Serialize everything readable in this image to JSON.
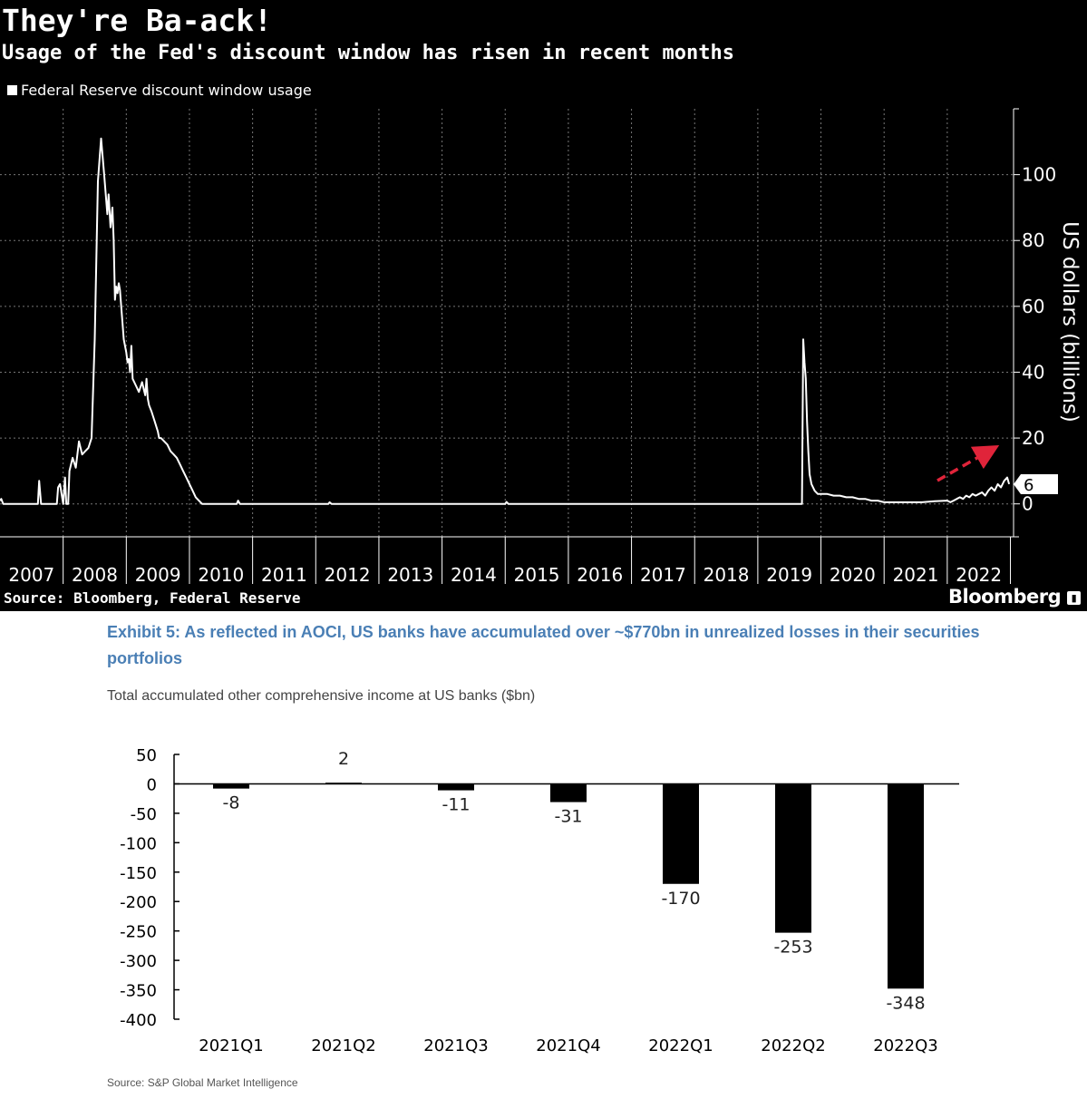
{
  "chart_data": [
    {
      "type": "line",
      "title": "They're Ba-ack!",
      "subtitle": "Usage of the Fed's discount window has risen in recent months",
      "legend": "Federal Reserve discount window usage",
      "ylabel": "US dollars (billions)",
      "ylim": [
        -10,
        120
      ],
      "xlim": [
        2007,
        2023.05
      ],
      "y_ticks": [
        "100",
        "80",
        "60",
        "40",
        "20",
        "0"
      ],
      "y_tick_values": [
        100,
        80,
        60,
        40,
        20,
        0
      ],
      "x_ticks": [
        "2007",
        "2008",
        "2009",
        "2010",
        "2011",
        "2012",
        "2013",
        "2014",
        "2015",
        "2016",
        "2017",
        "2018",
        "2019",
        "2020",
        "2021",
        "2022"
      ],
      "last_value_label": "6",
      "source": "Source: Bloomberg, Federal Reserve",
      "brand": "Bloomberg",
      "annotation": "red dashed arrow indicating rising usage in 2022",
      "series": [
        {
          "name": "Federal Reserve discount window usage",
          "x": [
            2007.0,
            2007.02,
            2007.05,
            2007.1,
            2007.6,
            2007.62,
            2007.65,
            2007.7,
            2007.9,
            2007.92,
            2007.95,
            2008.0,
            2008.03,
            2008.05,
            2008.08,
            2008.1,
            2008.15,
            2008.2,
            2008.25,
            2008.3,
            2008.35,
            2008.4,
            2008.45,
            2008.5,
            2008.55,
            2008.6,
            2008.65,
            2008.7,
            2008.72,
            2008.75,
            2008.78,
            2008.8,
            2008.82,
            2008.84,
            2008.86,
            2008.88,
            2008.9,
            2008.92,
            2008.94,
            2008.96,
            2008.98,
            2009.0,
            2009.02,
            2009.04,
            2009.06,
            2009.08,
            2009.1,
            2009.15,
            2009.2,
            2009.25,
            2009.3,
            2009.32,
            2009.34,
            2009.36,
            2009.4,
            2009.45,
            2009.5,
            2009.52,
            2009.55,
            2009.6,
            2009.65,
            2009.7,
            2009.75,
            2009.8,
            2009.85,
            2009.9,
            2009.95,
            2010.0,
            2010.05,
            2010.1,
            2010.15,
            2010.2,
            2010.3,
            2010.35,
            2010.4,
            2010.45,
            2010.5,
            2010.55,
            2010.6,
            2010.75,
            2010.77,
            2010.8,
            2011.5,
            2012.2,
            2012.22,
            2012.25,
            2013.5,
            2015.0,
            2015.02,
            2015.05,
            2016.5,
            2017.5,
            2018.5,
            2019.0,
            2019.6,
            2019.7,
            2019.72,
            2019.74,
            2019.76,
            2019.78,
            2019.8,
            2019.82,
            2019.85,
            2019.9,
            2019.95,
            2020.0,
            2020.1,
            2020.2,
            2020.3,
            2020.4,
            2020.5,
            2020.6,
            2020.7,
            2020.8,
            2020.9,
            2021.0,
            2021.2,
            2021.4,
            2021.6,
            2021.8,
            2022.0,
            2022.05,
            2022.1,
            2022.15,
            2022.2,
            2022.25,
            2022.3,
            2022.35,
            2022.4,
            2022.45,
            2022.5,
            2022.55,
            2022.6,
            2022.65,
            2022.7,
            2022.75,
            2022.8,
            2022.85,
            2022.9,
            2022.95,
            2022.98
          ],
          "y": [
            1,
            1.5,
            0,
            0,
            0,
            7,
            0,
            0,
            0,
            5,
            6,
            0,
            8,
            0,
            0,
            10,
            14,
            11,
            19,
            15,
            16,
            17,
            20,
            50,
            98,
            111,
            100,
            88,
            94,
            84,
            90,
            80,
            62,
            66,
            64,
            67,
            65,
            60,
            55,
            50,
            48,
            46,
            43,
            44,
            40,
            48,
            38,
            36,
            34,
            37,
            33,
            38,
            32,
            30,
            28,
            25,
            22,
            20,
            20,
            19,
            18,
            16,
            15,
            14,
            12,
            10,
            8,
            6,
            4,
            2,
            1,
            0,
            0,
            0,
            0,
            0,
            0,
            0,
            0,
            0,
            1,
            0,
            0,
            0,
            0.5,
            0,
            0,
            0,
            0.6,
            0,
            0,
            0,
            0,
            0,
            0,
            0,
            50,
            43,
            38,
            25,
            16,
            9,
            6,
            4,
            3,
            3,
            3,
            2.5,
            2.5,
            2,
            2,
            1.5,
            1.5,
            1,
            1,
            0.5,
            0.5,
            0.5,
            0.5,
            0.8,
            1,
            0.5,
            1,
            1.5,
            2,
            1.5,
            2.5,
            2,
            3,
            2.5,
            3,
            3.5,
            2.5,
            4,
            5,
            4,
            6,
            5,
            7,
            8,
            6
          ]
        }
      ]
    },
    {
      "type": "bar",
      "title": "Exhibit 5: As reflected in AOCI, US banks have accumulated over ~$770bn in unrealized losses in their securities portfolios",
      "subtitle": "Total accumulated other comprehensive income at US banks ($bn)",
      "categories": [
        "2021Q1",
        "2021Q2",
        "2021Q3",
        "2021Q4",
        "2022Q1",
        "2022Q2",
        "2022Q3"
      ],
      "values": [
        -8,
        2,
        -11,
        -31,
        -170,
        -253,
        -348
      ],
      "value_labels": [
        "-8",
        "2",
        "-11",
        "-31",
        "-170",
        "-253",
        "-348"
      ],
      "ylim": [
        -400,
        50
      ],
      "y_ticks": [
        "50",
        "0",
        "-50",
        "-100",
        "-150",
        "-200",
        "-250",
        "-300",
        "-350",
        "-400"
      ],
      "y_tick_values": [
        50,
        0,
        -50,
        -100,
        -150,
        -200,
        -250,
        -300,
        -350,
        -400
      ],
      "xlabel": "",
      "ylabel": "",
      "source": "Source: S&P Global Market Intelligence",
      "colors": {
        "bar": "#000000",
        "title": "#4a7fb5"
      }
    }
  ]
}
